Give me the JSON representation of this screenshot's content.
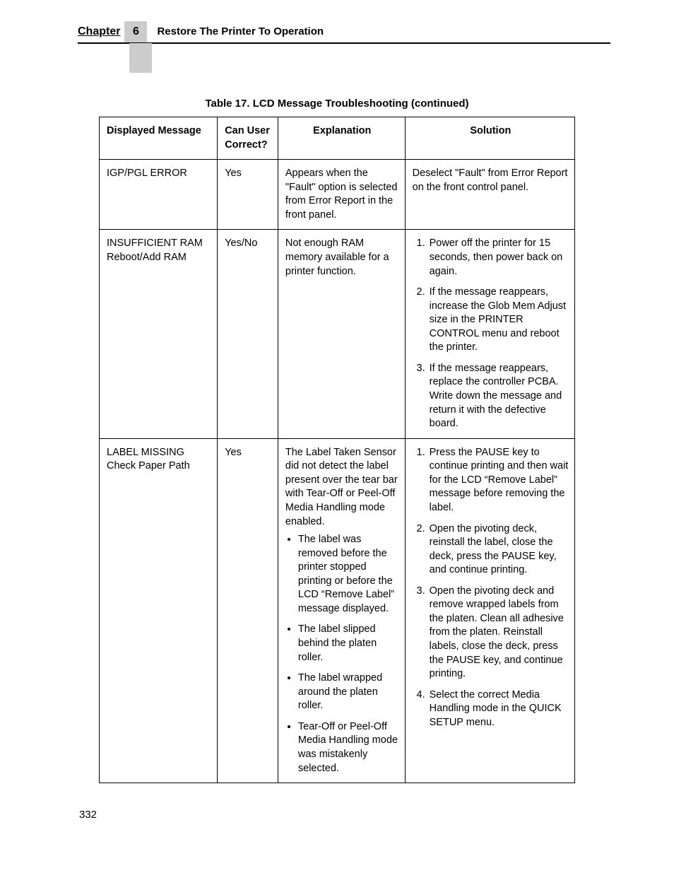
{
  "header": {
    "chapter_label": "Chapter",
    "chapter_number": "6",
    "section_title": "Restore The Printer To Operation"
  },
  "table": {
    "caption": "Table 17. LCD Message Troubleshooting (continued)",
    "columns": {
      "displayed_message": "Displayed Message",
      "can_user_correct": "Can User Correct?",
      "explanation": "Explanation",
      "solution": "Solution"
    },
    "rows": [
      {
        "message": "IGP/PGL ERROR",
        "correct": "Yes",
        "explanation_text": "Appears when the \"Fault\" option is selected from Error Report in the front panel.",
        "solution_text": "Deselect \"Fault\" from Error Report on the front control panel."
      },
      {
        "message": "INSUFFICIENT RAM Reboot/Add RAM",
        "correct": "Yes/No",
        "explanation_text": "Not enough RAM memory available for a printer function.",
        "solution_list": [
          "Power off the printer for 15 seconds, then power back on again.",
          "If the message reappears, increase the Glob Mem Adjust size in the PRINTER CONTROL menu and reboot the printer.",
          "If the message reappears, replace the controller PCBA. Write down the message and return it with the defective board."
        ]
      },
      {
        "message": "LABEL MISSING Check Paper Path",
        "correct": "Yes",
        "explanation_text": "The Label Taken Sensor did not detect the label present over the tear bar with Tear-Off or Peel-Off Media Handling mode enabled.",
        "explanation_list": [
          "The label was removed before the printer stopped printing or before the LCD “Remove Label” message displayed.",
          "The label slipped behind the platen roller.",
          "The label wrapped around the platen roller.",
          "Tear-Off or Peel-Off Media Handling mode was mistakenly selected."
        ],
        "solution_list": [
          "Press the PAUSE key to continue printing and then wait for the LCD “Remove Label” message before removing the label.",
          "Open the pivoting deck, reinstall the label, close the deck, press the PAUSE key, and continue printing.",
          "Open the pivoting deck and remove wrapped labels from the platen. Clean all adhesive from the platen. Reinstall labels, close the deck, press the PAUSE key, and continue printing.",
          "Select the correct Media Handling mode in the QUICK SETUP menu."
        ]
      }
    ]
  },
  "page_number": "332"
}
